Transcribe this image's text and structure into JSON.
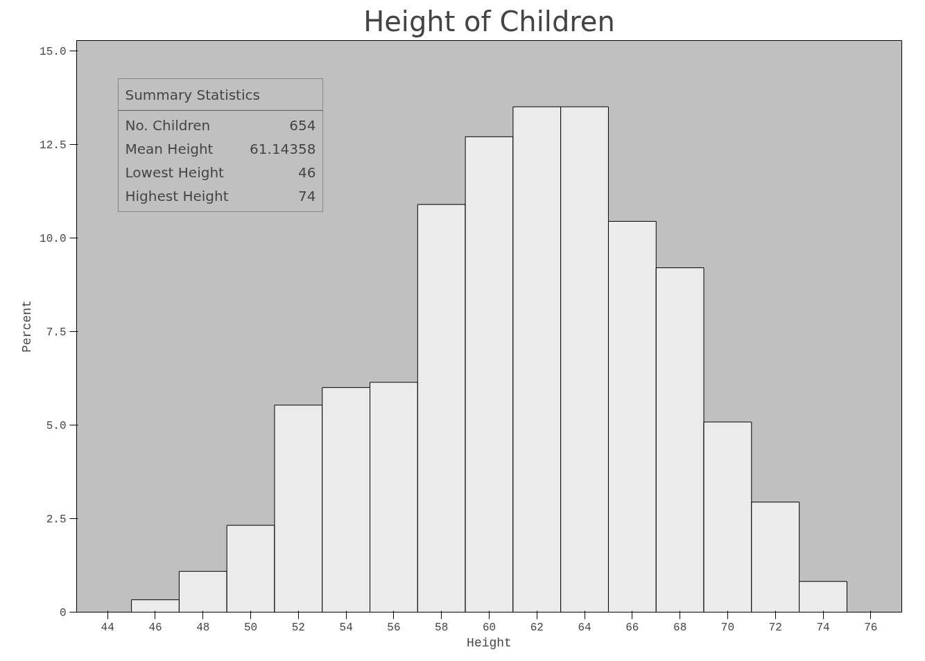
{
  "chart_data": {
    "type": "histogram",
    "title": "Height of Children",
    "xlabel": "Height",
    "ylabel": "Percent",
    "bins": [
      45,
      47,
      49,
      51,
      53,
      55,
      57,
      59,
      61,
      63,
      65,
      67,
      69,
      71,
      73,
      75
    ],
    "values": [
      0.33,
      1.09,
      2.32,
      5.53,
      6.0,
      6.14,
      10.89,
      12.7,
      13.5,
      13.5,
      10.44,
      9.2,
      5.08,
      2.94,
      0.82
    ],
    "color": "#ebebeb",
    "xlim": [
      42.7,
      77.3
    ],
    "xticks": [
      44,
      46,
      48,
      50,
      52,
      54,
      56,
      58,
      60,
      62,
      64,
      66,
      68,
      70,
      72,
      74,
      76
    ],
    "ylim": [
      0,
      15.27
    ],
    "yticks": [
      0,
      {
        "value": 2.5,
        "label": "2.5"
      },
      {
        "value": 5,
        "label": "5.0"
      },
      {
        "value": 7.5,
        "label": "7.5"
      },
      {
        "value": 10,
        "label": "10.0"
      },
      {
        "value": 12.5,
        "label": "12.5"
      },
      {
        "value": 15,
        "label": "15.0"
      }
    ],
    "grid": false,
    "annotations": [
      "Summary Statistics",
      "No. Children",
      "654",
      "Mean Height",
      "61.14358",
      "Lowest Height",
      "46",
      "Highest Height",
      "74"
    ]
  }
}
